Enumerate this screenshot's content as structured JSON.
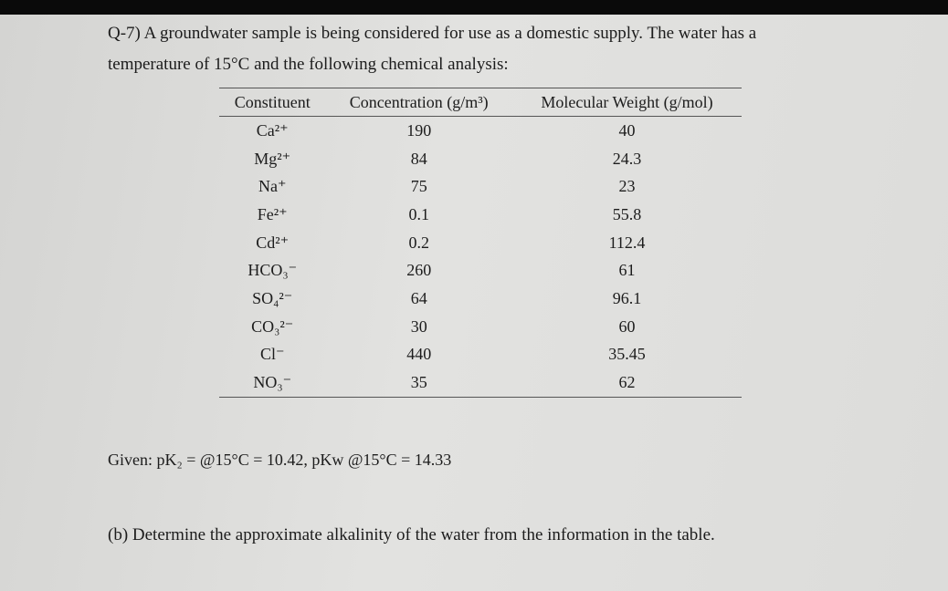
{
  "question": {
    "line1": "Q-7) A groundwater sample is being considered for use as a domestic supply. The water has a",
    "line2": "temperature of 15°C and the following chemical analysis:"
  },
  "table": {
    "header": [
      "Constituent",
      "Concentration (g/m³)",
      "Molecular Weight (g/mol)"
    ],
    "rows": [
      [
        "Ca²⁺",
        "190",
        "40"
      ],
      [
        "Mg²⁺",
        "84",
        "24.3"
      ],
      [
        "Na⁺",
        "75",
        "23"
      ],
      [
        "Fe²⁺",
        "0.1",
        "55.8"
      ],
      [
        "Cd²⁺",
        "0.2",
        "112.4"
      ],
      [
        "HCO₃⁻",
        "260",
        "61"
      ],
      [
        "SO₄²⁻",
        "64",
        "96.1"
      ],
      [
        "CO₃²⁻",
        "30",
        "60"
      ],
      [
        "Cl⁻",
        "440",
        "35.45"
      ],
      [
        "NO₃⁻",
        "35",
        "62"
      ]
    ]
  },
  "given": "Given: pK₂ = @15°C = 10.42, pKw @15°C = 14.33",
  "part_b": "(b) Determine the approximate alkalinity of the water from the information in the table."
}
